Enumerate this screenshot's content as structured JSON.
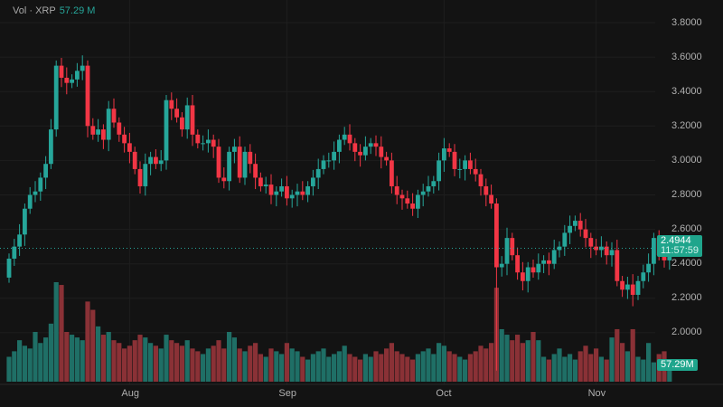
{
  "legend": {
    "label": "Vol · XRP",
    "value": "57.29 M"
  },
  "price_tag": {
    "price": "2.4944",
    "countdown": "11:57:59"
  },
  "volume_tag": "57.29M",
  "colors": {
    "up": "#26a69a",
    "down": "#f23645",
    "up_vol": "#1f6f66",
    "down_vol": "#8a3136",
    "bg": "#131313"
  },
  "chart_data": {
    "type": "candlestick",
    "symbol": "XRP",
    "ylim": [
      1.85,
      3.9
    ],
    "yticks": [
      "3.8000",
      "3.6000",
      "3.4000",
      "3.2000",
      "3.0000",
      "2.8000",
      "2.6000",
      "2.4000",
      "2.2000",
      "2.0000"
    ],
    "ytick_values": [
      3.8,
      3.6,
      3.4,
      3.2,
      3.0,
      2.8,
      2.6,
      2.4,
      2.2,
      2.0
    ],
    "xticks": [
      {
        "label": "Aug",
        "index": 23
      },
      {
        "label": "Sep",
        "index": 53
      },
      {
        "label": "Oct",
        "index": 83
      },
      {
        "label": "Nov",
        "index": 112
      }
    ],
    "open0": 2.32,
    "close": [
      2.43,
      2.5,
      2.57,
      2.72,
      2.8,
      2.82,
      2.9,
      2.98,
      3.18,
      3.55,
      3.48,
      3.45,
      3.47,
      3.52,
      3.55,
      3.2,
      3.15,
      3.18,
      3.12,
      3.3,
      3.22,
      3.15,
      3.1,
      3.05,
      2.95,
      2.85,
      2.98,
      3.02,
      2.98,
      3.0,
      3.35,
      3.3,
      3.25,
      3.18,
      3.32,
      3.15,
      3.1,
      3.1,
      3.12,
      3.08,
      2.9,
      2.88,
      3.05,
      3.08,
      2.9,
      3.05,
      2.98,
      2.9,
      2.85,
      2.86,
      2.8,
      2.82,
      2.85,
      2.78,
      2.8,
      2.82,
      2.8,
      2.85,
      2.9,
      2.95,
      3.0,
      3.0,
      3.05,
      3.12,
      3.15,
      3.1,
      3.05,
      3.03,
      3.08,
      3.1,
      3.08,
      3.02,
      3.0,
      2.85,
      2.8,
      2.78,
      2.75,
      2.72,
      2.8,
      2.82,
      2.85,
      2.88,
      3.0,
      3.07,
      3.05,
      2.95,
      2.95,
      3.0,
      2.95,
      2.92,
      2.85,
      2.8,
      2.75,
      2.38,
      2.4,
      2.55,
      2.45,
      2.35,
      2.3,
      2.38,
      2.35,
      2.4,
      2.42,
      2.4,
      2.48,
      2.5,
      2.58,
      2.62,
      2.65,
      2.6,
      2.55,
      2.5,
      2.48,
      2.5,
      2.45,
      2.48,
      2.3,
      2.25,
      2.28,
      2.22,
      2.3,
      2.35,
      2.4,
      2.55,
      2.45,
      2.42,
      2.49
    ],
    "volume_m": [
      90,
      110,
      150,
      130,
      120,
      180,
      140,
      160,
      210,
      360,
      350,
      180,
      170,
      160,
      150,
      290,
      260,
      200,
      170,
      180,
      150,
      140,
      120,
      130,
      150,
      170,
      160,
      140,
      130,
      120,
      170,
      150,
      140,
      130,
      150,
      120,
      110,
      100,
      120,
      130,
      150,
      120,
      180,
      160,
      120,
      110,
      130,
      140,
      100,
      90,
      120,
      110,
      100,
      140,
      120,
      110,
      90,
      80,
      100,
      110,
      120,
      90,
      100,
      110,
      130,
      100,
      90,
      80,
      100,
      90,
      110,
      100,
      120,
      140,
      110,
      100,
      90,
      80,
      100,
      110,
      120,
      100,
      140,
      130,
      110,
      100,
      90,
      80,
      100,
      110,
      130,
      120,
      140,
      340,
      190,
      170,
      150,
      170,
      140,
      150,
      180,
      150,
      90,
      80,
      100,
      120,
      90,
      100,
      80,
      110,
      130,
      100,
      120,
      90,
      80,
      160,
      190,
      140,
      110,
      190,
      90,
      80,
      140,
      70,
      100,
      110,
      57.29
    ]
  }
}
